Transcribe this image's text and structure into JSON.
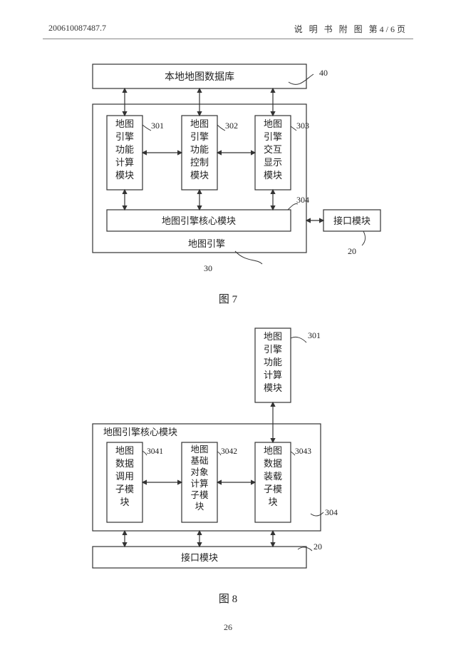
{
  "header": {
    "doc_number": "200610087487.7",
    "right_text": "说 明 书 附 图  第4/6页"
  },
  "fig7": {
    "caption": "图 7",
    "top_box": {
      "label": "本地地图数据库",
      "ref": "40"
    },
    "engine_box": {
      "label": "地图引擎",
      "ref": "30"
    },
    "inner": [
      {
        "lines": [
          "地图",
          "引擎",
          "功能",
          "计算",
          "模块"
        ],
        "ref": "301"
      },
      {
        "lines": [
          "地图",
          "引擎",
          "功能",
          "控制",
          "模块"
        ],
        "ref": "302"
      },
      {
        "lines": [
          "地图",
          "引擎",
          "交互",
          "显示",
          "模块"
        ],
        "ref": "303"
      }
    ],
    "core": {
      "label": "地图引擎核心模块",
      "ref": "304"
    },
    "interface": {
      "label": "接口模块",
      "ref": "20"
    }
  },
  "fig8": {
    "caption": "图 8",
    "top_box": {
      "lines": [
        "地图",
        "引擎",
        "功能",
        "计算",
        "模块"
      ],
      "ref": "301"
    },
    "core_box": {
      "label": "地图引擎核心模块",
      "ref": "304"
    },
    "inner": [
      {
        "lines": [
          "地图",
          "数据",
          "调用",
          "子模",
          "块"
        ],
        "ref": "3041"
      },
      {
        "lines": [
          "地图",
          "基础",
          "对象",
          "计算",
          "子模",
          "块"
        ],
        "ref": "3042"
      },
      {
        "lines": [
          "地图",
          "数据",
          "装载",
          "子模",
          "块"
        ],
        "ref": "3043"
      }
    ],
    "interface": {
      "label": "接口模块",
      "ref": "20"
    }
  },
  "footer": {
    "page_num": "26"
  },
  "style": {
    "stroke": "#333333",
    "stroke_width": 1.2,
    "text_color": "#222222",
    "font_size_box": 13,
    "font_size_ref": 12,
    "font_size_caption": 15
  }
}
